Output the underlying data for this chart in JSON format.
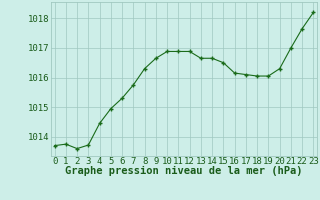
{
  "x": [
    0,
    1,
    2,
    3,
    4,
    5,
    6,
    7,
    8,
    9,
    10,
    11,
    12,
    13,
    14,
    15,
    16,
    17,
    18,
    19,
    20,
    21,
    22,
    23
  ],
  "y": [
    1013.7,
    1013.75,
    1013.6,
    1013.72,
    1014.45,
    1014.95,
    1015.3,
    1015.75,
    1016.3,
    1016.65,
    1016.88,
    1016.88,
    1016.88,
    1016.65,
    1016.65,
    1016.5,
    1016.15,
    1016.1,
    1016.05,
    1016.05,
    1016.3,
    1017.0,
    1017.65,
    1018.2
  ],
  "xlabel": "Graphe pression niveau de la mer (hPa)",
  "yticks": [
    1014,
    1015,
    1016,
    1017,
    1018
  ],
  "xticks": [
    0,
    1,
    2,
    3,
    4,
    5,
    6,
    7,
    8,
    9,
    10,
    11,
    12,
    13,
    14,
    15,
    16,
    17,
    18,
    19,
    20,
    21,
    22,
    23
  ],
  "ylim": [
    1013.35,
    1018.55
  ],
  "xlim": [
    -0.3,
    23.3
  ],
  "line_color": "#1a6b1a",
  "marker_color": "#1a6b1a",
  "bg_color": "#cdeee8",
  "grid_color": "#a0c8c0",
  "xlabel_color": "#1a5c1a",
  "tick_color": "#1a5c1a",
  "xlabel_fontsize": 7.5,
  "tick_fontsize": 6.5,
  "figsize": [
    3.2,
    2.0
  ],
  "dpi": 100
}
